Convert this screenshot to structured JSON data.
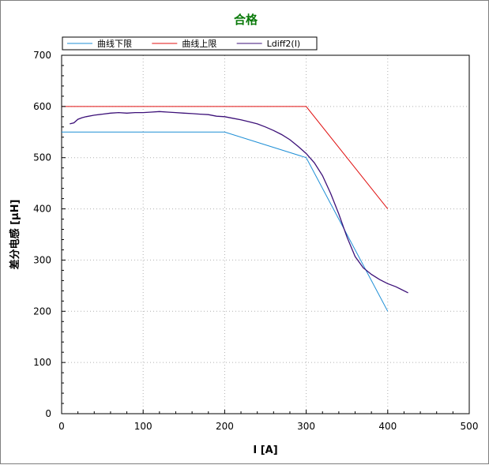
{
  "chart_data": {
    "type": "line",
    "title": "合格",
    "xlabel": "I [A]",
    "ylabel": "差分电感 [µH]",
    "xlim": [
      0,
      500
    ],
    "ylim": [
      0,
      700
    ],
    "xticks": [
      0,
      100,
      200,
      300,
      400,
      500
    ],
    "yticks": [
      0,
      100,
      200,
      300,
      400,
      500,
      600,
      700
    ],
    "grid": true,
    "legend_position": "top",
    "series": [
      {
        "name": "曲线下限",
        "color": "#1f8fd6",
        "x": [
          0,
          200,
          300,
          400
        ],
        "y": [
          550,
          550,
          500,
          200
        ]
      },
      {
        "name": "曲线上限",
        "color": "#e01010",
        "x": [
          0,
          300,
          400
        ],
        "y": [
          600,
          600,
          400
        ]
      },
      {
        "name": "Ldiff2(I)",
        "color": "#3c1078",
        "x": [
          10,
          15,
          20,
          25,
          30,
          40,
          50,
          60,
          70,
          80,
          90,
          100,
          110,
          120,
          130,
          140,
          150,
          160,
          170,
          180,
          190,
          200,
          210,
          220,
          230,
          240,
          250,
          260,
          270,
          280,
          290,
          300,
          310,
          320,
          330,
          340,
          350,
          360,
          370,
          380,
          390,
          400,
          410,
          425
        ],
        "y": [
          566,
          568,
          575,
          578,
          580,
          583,
          585,
          587,
          588,
          587,
          588,
          588,
          589,
          590,
          589,
          588,
          587,
          586,
          585,
          584,
          581,
          580,
          577,
          574,
          570,
          566,
          560,
          553,
          545,
          535,
          522,
          508,
          490,
          465,
          430,
          390,
          345,
          307,
          285,
          272,
          262,
          254,
          248,
          236
        ]
      }
    ]
  }
}
